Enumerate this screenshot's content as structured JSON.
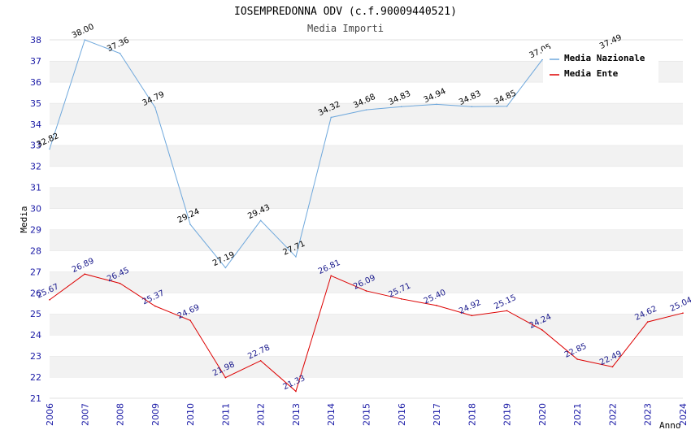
{
  "chart_data": {
    "type": "line",
    "title": "IOSEMPREDONNA ODV (c.f.90009440521)",
    "subtitle": "Media Importi",
    "xlabel": "Anno",
    "ylabel": "Media",
    "ylim": [
      21,
      38
    ],
    "yticks": [
      21,
      22,
      23,
      24,
      25,
      26,
      27,
      28,
      29,
      30,
      31,
      32,
      33,
      34,
      35,
      36,
      37,
      38
    ],
    "x": [
      "2006",
      "2007",
      "2008",
      "2009",
      "2010",
      "2011",
      "2012",
      "2013",
      "2014",
      "2015",
      "2016",
      "2017",
      "2018",
      "2019",
      "2020",
      "2021",
      "2022",
      "2023",
      "2024"
    ],
    "grid": "horizontal alternating bands",
    "legend": "top-right",
    "series": [
      {
        "name": "Media Nazionale",
        "color": "#6fa8dc",
        "label_color": "#000000",
        "values": [
          32.82,
          38.0,
          37.36,
          34.79,
          29.24,
          27.19,
          29.43,
          27.71,
          34.32,
          34.68,
          34.83,
          34.94,
          34.83,
          34.85,
          37.05,
          null,
          37.49,
          null,
          null
        ],
        "labels": [
          "32.82",
          "38.00",
          "37.36",
          "34.79",
          "29.24",
          "27.19",
          "29.43",
          "27.71",
          "34.32",
          "34.68",
          "34.83",
          "34.94",
          "34.83",
          "34.85",
          "37.05",
          "",
          "37.49",
          "",
          ""
        ]
      },
      {
        "name": "Media Ente",
        "color": "#dd0000",
        "label_color": "#1a1a8c",
        "values": [
          25.67,
          26.89,
          26.45,
          25.37,
          24.69,
          21.98,
          22.78,
          21.33,
          26.81,
          26.09,
          25.71,
          25.4,
          24.92,
          25.15,
          24.24,
          22.85,
          22.49,
          24.62,
          25.04
        ],
        "labels": [
          "25.67",
          "26.89",
          "26.45",
          "25.37",
          "24.69",
          "21.98",
          "22.78",
          "21.33",
          "26.81",
          "26.09",
          "25.71",
          "25.40",
          "24.92",
          "25.15",
          "24.24",
          "22.85",
          "22.49",
          "24.62",
          "25.04"
        ]
      }
    ]
  }
}
